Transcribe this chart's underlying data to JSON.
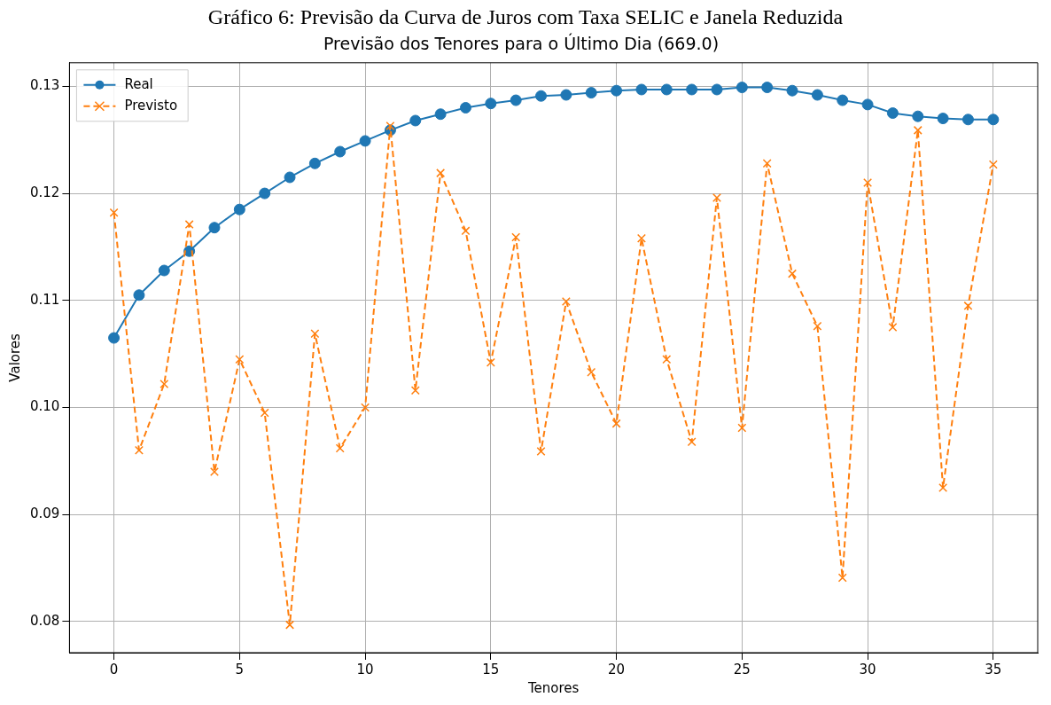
{
  "chart_data": {
    "type": "line",
    "title": "Gráfico 6: Previsão da Curva de Juros com Taxa SELIC e Janela Reduzida",
    "subtitle": "Previsão dos Tenores para o Último Dia (669.0)",
    "xlabel": "Tenores",
    "ylabel": "Valores",
    "x": [
      0,
      1,
      2,
      3,
      4,
      5,
      6,
      7,
      8,
      9,
      10,
      11,
      12,
      13,
      14,
      15,
      16,
      17,
      18,
      19,
      20,
      21,
      22,
      23,
      24,
      25,
      26,
      27,
      28,
      29,
      30,
      31,
      32,
      33,
      34,
      35
    ],
    "series": [
      {
        "name": "Real",
        "color": "#1f77b4",
        "marker": "circle",
        "line_style": "solid",
        "values": [
          0.1065,
          0.1105,
          0.1128,
          0.1146,
          0.1168,
          0.1185,
          0.12,
          0.1215,
          0.1228,
          0.1239,
          0.1249,
          0.1259,
          0.1268,
          0.1274,
          0.128,
          0.1284,
          0.1287,
          0.1291,
          0.1292,
          0.1294,
          0.1296,
          0.1297,
          0.1297,
          0.1297,
          0.1297,
          0.1299,
          0.1299,
          0.1296,
          0.1292,
          0.1287,
          0.1283,
          0.1275,
          0.1272,
          0.127,
          0.1269,
          0.1269
        ]
      },
      {
        "name": "Previsto",
        "color": "#ff7f0e",
        "marker": "cross",
        "line_style": "dashed",
        "values": [
          0.1182,
          0.096,
          0.1022,
          0.1171,
          0.094,
          0.1045,
          0.0995,
          0.0797,
          0.1069,
          0.0962,
          0.1,
          0.1263,
          0.1016,
          0.1219,
          0.1165,
          0.1042,
          0.1159,
          0.0959,
          0.1099,
          0.1033,
          0.0985,
          0.1158,
          0.1045,
          0.0968,
          0.1196,
          0.0981,
          0.1228,
          0.1125,
          0.1076,
          0.0841,
          0.121,
          0.1075,
          0.1259,
          0.0925,
          0.1095,
          0.1227
        ]
      }
    ],
    "xlim": [
      -1.77,
      36.77
    ],
    "xticks": [
      0,
      5,
      10,
      15,
      20,
      25,
      30,
      35
    ],
    "ylim": [
      0.0771,
      0.1322
    ],
    "yticks": [
      0.08,
      0.09,
      {
        "value": 0.1,
        "label": "0.10"
      },
      0.11,
      0.12,
      0.13
    ],
    "grid": true,
    "legend": "top left"
  }
}
